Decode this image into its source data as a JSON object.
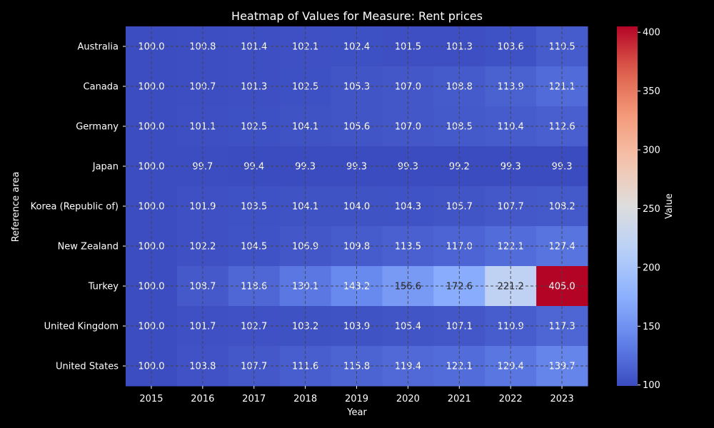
{
  "chart_data": {
    "type": "heatmap",
    "title": "Heatmap of Values for Measure: Rent prices",
    "xlabel": "Year",
    "ylabel": "Reference area",
    "x": [
      "2015",
      "2016",
      "2017",
      "2018",
      "2019",
      "2020",
      "2021",
      "2022",
      "2023"
    ],
    "y": [
      "Australia",
      "Canada",
      "Germany",
      "Japan",
      "Korea (Republic of)",
      "New Zealand",
      "Turkey",
      "United Kingdom",
      "United States"
    ],
    "values": [
      [
        100.0,
        100.8,
        101.4,
        102.1,
        102.4,
        101.5,
        101.3,
        103.6,
        110.5
      ],
      [
        100.0,
        100.7,
        101.3,
        102.5,
        105.3,
        107.0,
        108.8,
        113.9,
        121.1
      ],
      [
        100.0,
        101.1,
        102.5,
        104.1,
        105.6,
        107.0,
        108.5,
        110.4,
        112.6
      ],
      [
        100.0,
        99.7,
        99.4,
        99.3,
        99.3,
        99.3,
        99.2,
        99.3,
        99.3
      ],
      [
        100.0,
        101.9,
        103.5,
        104.1,
        104.0,
        104.3,
        105.7,
        107.7,
        108.2
      ],
      [
        100.0,
        102.2,
        104.5,
        106.9,
        109.8,
        113.5,
        117.0,
        122.1,
        127.4
      ],
      [
        100.0,
        108.7,
        118.6,
        130.1,
        143.2,
        156.6,
        172.6,
        221.2,
        405.0
      ],
      [
        100.0,
        101.7,
        102.7,
        103.2,
        103.9,
        105.4,
        107.1,
        110.9,
        117.3
      ],
      [
        100.0,
        103.8,
        107.7,
        111.6,
        115.8,
        119.4,
        122.1,
        129.4,
        139.7
      ]
    ],
    "colormap": "coolwarm",
    "color_range": [
      99.2,
      405.0
    ],
    "colorbar": {
      "label": "Value",
      "ticks": [
        100,
        150,
        200,
        250,
        300,
        350,
        400
      ]
    },
    "grid": true,
    "cell_value_format": "1 decimal"
  }
}
